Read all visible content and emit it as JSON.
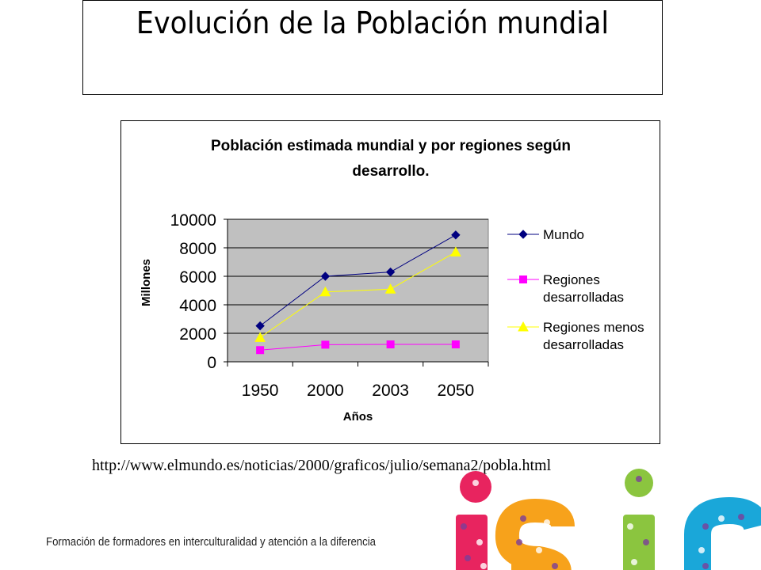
{
  "slide": {
    "title": "Evolución de la Población mundial",
    "source_url": "http://www.elmundo.es/noticias/2000/graficos/julio/semana2/pobla.html",
    "footer": "Formación de formadores en interculturalidad y atención a la diferencia"
  },
  "chart_data": {
    "type": "line",
    "title_lines": [
      "Población estimada mundial y por regiones según",
      "desarrollo."
    ],
    "xlabel": "Años",
    "ylabel": "Millones",
    "categories": [
      "1950",
      "2000",
      "2003",
      "2050"
    ],
    "ylim": [
      0,
      10000
    ],
    "yticks": [
      "0",
      "2000",
      "4000",
      "6000",
      "8000",
      "10000"
    ],
    "grid": true,
    "plot_background": "#c0c0c0",
    "legend_position": "right",
    "series": [
      {
        "name_lines": [
          "Mundo"
        ],
        "values": [
          2520,
          6000,
          6300,
          8900
        ],
        "color": "#000080",
        "marker": "diamond"
      },
      {
        "name_lines": [
          "Regiones",
          "desarrolladas"
        ],
        "values": [
          820,
          1200,
          1220,
          1220
        ],
        "color": "#ff00ff",
        "marker": "square"
      },
      {
        "name_lines": [
          "Regiones menos",
          "desarrolladas"
        ],
        "values": [
          1700,
          4900,
          5100,
          7700
        ],
        "color": "#ffff00",
        "marker": "triangle"
      }
    ]
  },
  "logo": {
    "name": "isir",
    "colors": [
      "#e8245f",
      "#f7a21b",
      "#8bc53f",
      "#1aa7d9",
      "#7a3f98"
    ]
  }
}
